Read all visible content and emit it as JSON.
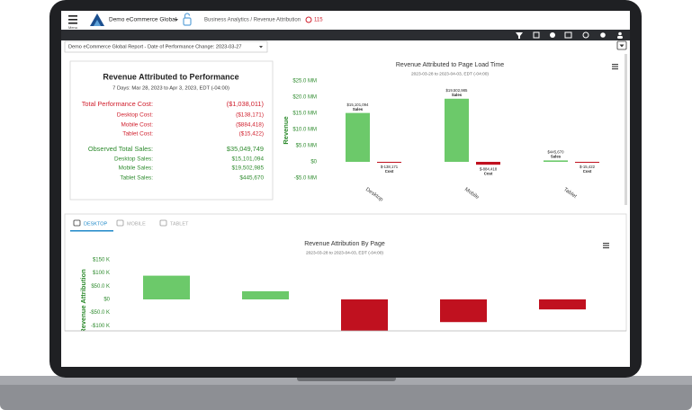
{
  "header": {
    "menu": "Menu",
    "account": "Demo eCommerce Global",
    "breadcrumb": "Business Analytics / Revenue Attribution",
    "alerts": "115"
  },
  "report_select": "Demo eCommerce Global Report - Date of Performance Change: 2023-03-27",
  "summary": {
    "title": "Revenue Attributed to Performance",
    "subtitle": "7 Days: Mar 28, 2023 to Apr 3, 2023, EDT (-04:00)",
    "rows": [
      {
        "label": "Total Performance Cost:",
        "value": "($1,038,011)",
        "color": "#d0202e"
      },
      {
        "label": "Desktop Cost:",
        "value": "($138,171)",
        "color": "#d0202e"
      },
      {
        "label": "Mobile Cost:",
        "value": "($884,418)",
        "color": "#d0202e"
      },
      {
        "label": "Tablet Cost:",
        "value": "($15,422)",
        "color": "#d0202e"
      },
      {
        "label": "Observed Total Sales:",
        "value": "$35,049,749",
        "color": "#2e8b2e"
      },
      {
        "label": "Desktop Sales:",
        "value": "$15,101,094",
        "color": "#2e8b2e"
      },
      {
        "label": "Mobile Sales:",
        "value": "$19,502,985",
        "color": "#2e8b2e"
      },
      {
        "label": "Tablet Sales:",
        "value": "$445,670",
        "color": "#2e8b2e"
      }
    ]
  },
  "tabs": [
    "DESKTOP",
    "MOBILE",
    "TABLET"
  ],
  "active_tab": 0,
  "chart_data": [
    {
      "type": "bar",
      "title": "Revenue Attributed to Page Load Time",
      "subtitle": "2023-03-28 to 2023-04-03, EDT (-04:00)",
      "y_label": "Revenue",
      "categories": [
        "Desktop",
        "Mobile",
        "Tablet"
      ],
      "series": [
        {
          "name": "Sales",
          "color": "#6cc96a",
          "values": [
            15101094,
            19502985,
            445670
          ],
          "value_labels": [
            "$15,101,094",
            "$19,502,985",
            "$445,670"
          ]
        },
        {
          "name": "Cost",
          "color": "#c0111f",
          "values": [
            -138171,
            -884418,
            -15422
          ],
          "value_labels": [
            "$-138,171",
            "$-884,418",
            "$-15,422"
          ]
        }
      ],
      "ylim": [
        -5000000,
        25000000
      ],
      "yticks": [
        {
          "value": 25000000,
          "label": "$25.0 MM"
        },
        {
          "value": 20000000,
          "label": "$20.0 MM"
        },
        {
          "value": 15000000,
          "label": "$15.0 MM"
        },
        {
          "value": 10000000,
          "label": "$10.0 MM"
        },
        {
          "value": 5000000,
          "label": "$5.0 MM"
        },
        {
          "value": 0,
          "label": "$0"
        },
        {
          "value": -5000000,
          "label": "-$5.0 MM"
        }
      ],
      "grid": false
    },
    {
      "type": "bar",
      "title": "Revenue Attribution By Page",
      "subtitle": "2023-03-28 to 2023-04-03, EDT (-04:00)",
      "y_label": "Revenue Attribution",
      "categories": [
        null,
        null,
        null,
        null,
        null
      ],
      "values": [
        90000,
        31000,
        -125000,
        -86000,
        -38000
      ],
      "colors": [
        "#6cc96a",
        "#6cc96a",
        "#c0111f",
        "#c0111f",
        "#c0111f"
      ],
      "ylim": [
        -150000,
        150000
      ],
      "yticks": [
        {
          "value": 150000,
          "label": "$150 K"
        },
        {
          "value": 100000,
          "label": "$100 K"
        },
        {
          "value": 50000,
          "label": "$50.0 K"
        },
        {
          "value": 0,
          "label": "$0"
        },
        {
          "value": -50000,
          "label": "-$50.0 K"
        },
        {
          "value": -100000,
          "label": "-$100 K"
        }
      ],
      "grid": false
    }
  ]
}
